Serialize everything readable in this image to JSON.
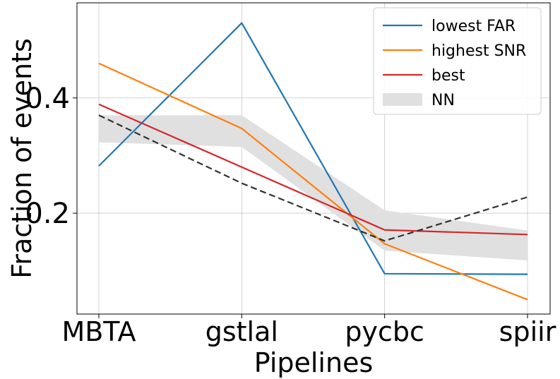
{
  "chart_data": {
    "type": "line",
    "categories": [
      "MBTA",
      "gstlal",
      "pycbc",
      "spiir"
    ],
    "xlabel": "Pipelines",
    "ylabel": "Fraction of events",
    "ylim": [
      0.025,
      0.565
    ],
    "yticks": [
      0.2,
      0.4
    ],
    "ytick_labels": [
      "0.2",
      "0.4"
    ],
    "grid": true,
    "legend_position": "top-right",
    "series": [
      {
        "name": "lowest FAR",
        "color": "#1f77b4",
        "values": [
          0.282,
          0.53,
          0.095,
          0.094
        ]
      },
      {
        "name": "highest SNR",
        "color": "#ff7f0e",
        "values": [
          0.46,
          0.347,
          0.147,
          0.05
        ]
      },
      {
        "name": "best",
        "color": "#d62728",
        "values": [
          0.389,
          0.28,
          0.171,
          0.163
        ]
      }
    ],
    "reference": {
      "color": "#333333",
      "style": "dashed",
      "values": [
        0.37,
        0.252,
        0.152,
        0.228
      ]
    },
    "band": {
      "name": "NN",
      "color": "#e0e0e0",
      "lower": [
        0.323,
        0.315,
        0.135,
        0.118
      ],
      "upper": [
        0.37,
        0.37,
        0.205,
        0.17
      ]
    }
  }
}
